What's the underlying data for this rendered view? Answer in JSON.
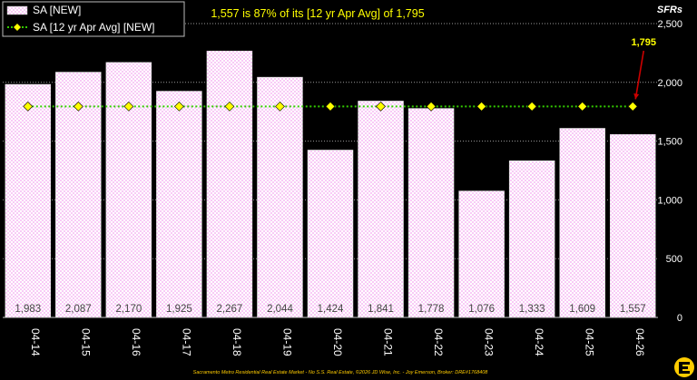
{
  "chart_data": {
    "type": "bar",
    "title": "1,557 is 87% of its [12 yr Apr Avg] of 1,795",
    "ylabel": "SFRs",
    "ylim": [
      0,
      2500
    ],
    "yticks": [
      {
        "value": 0,
        "label": "0"
      },
      {
        "value": 500,
        "label": "500"
      },
      {
        "value": 1000,
        "label": "1,000"
      },
      {
        "value": 1500,
        "label": "1,500"
      },
      {
        "value": 2000,
        "label": "2,000"
      },
      {
        "value": 2500,
        "label": "2,500"
      }
    ],
    "categories": [
      "04-14",
      "04-15",
      "04-16",
      "04-17",
      "04-18",
      "04-19",
      "04-20",
      "04-21",
      "04-22",
      "04-23",
      "04-24",
      "04-25",
      "04-26"
    ],
    "series": [
      {
        "name": "SA [NEW]",
        "type": "bar",
        "values": [
          1983,
          2087,
          2170,
          1925,
          2267,
          2044,
          1424,
          1841,
          1778,
          1076,
          1333,
          1609,
          1557
        ],
        "labels": [
          "1,983",
          "2,087",
          "2,170",
          "1,925",
          "2,267",
          "2,044",
          "1,424",
          "1,841",
          "1,778",
          "1,076",
          "1,333",
          "1,609",
          "1,557"
        ],
        "color": "#ffffff",
        "pattern_color": "#f4a6f0"
      },
      {
        "name": "SA [12 yr Apr Avg] [NEW]",
        "type": "line",
        "values": [
          1795,
          1795,
          1795,
          1795,
          1795,
          1795,
          1795,
          1795,
          1795,
          1795,
          1795,
          1795,
          1795
        ],
        "line_color": "#33cc00",
        "marker_color": "#ffff00"
      }
    ],
    "annotation": {
      "text": "1,795",
      "index": 12,
      "value": 1795,
      "color": "#ffff00",
      "arrow_color": "#cc0000"
    },
    "grid": true,
    "legend": "top-left"
  },
  "footer": "Sacramento Metro Residential Real Estate Market - No S.S. Real Estate, ©2026 JD Wise, Inc. - Joy Emerson, Broker: DRE#1768408",
  "colors": {
    "background": "#000000",
    "grid": "#9a9a9a",
    "title": "#ffff00",
    "text": "#ffffff",
    "logo": "#ffcc00"
  }
}
